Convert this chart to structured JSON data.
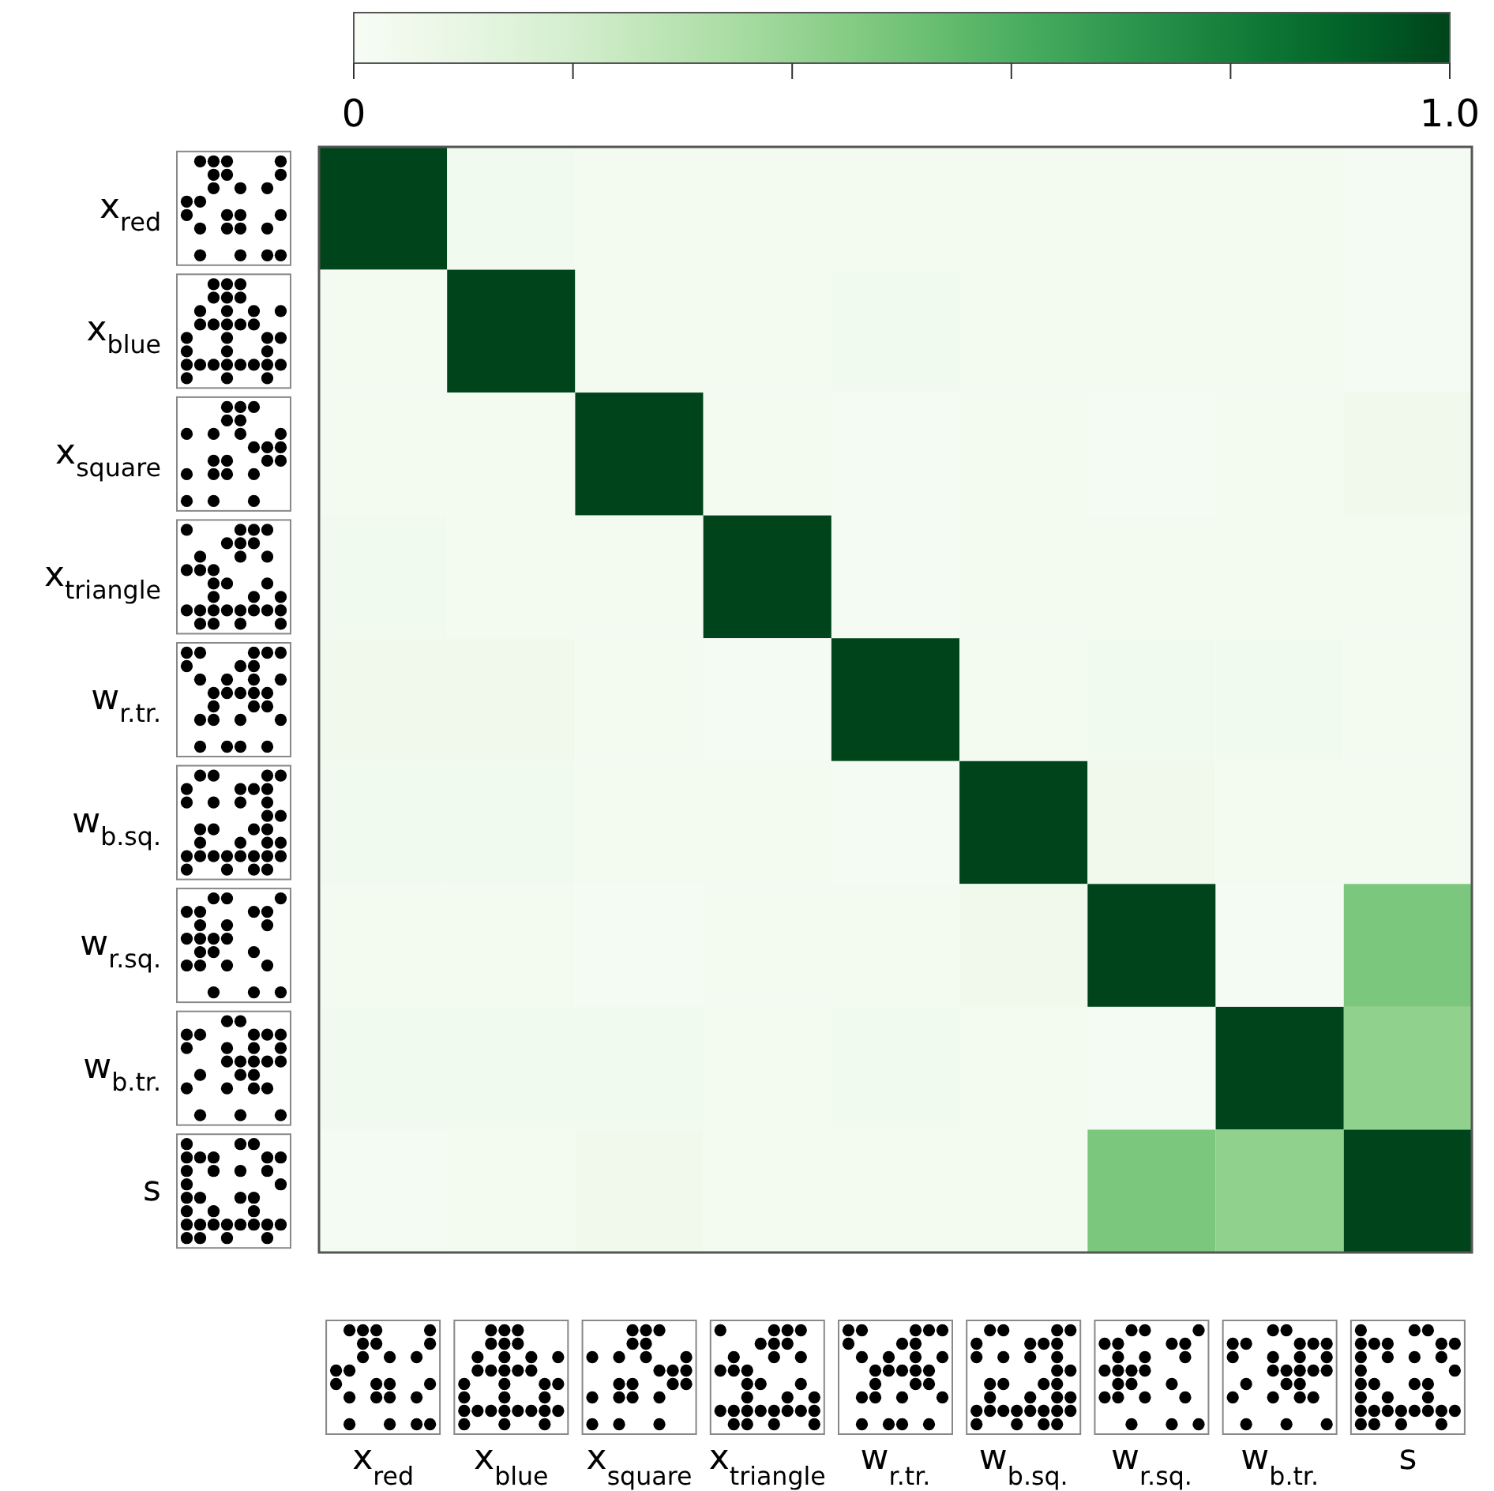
{
  "chart_data": {
    "type": "heatmap",
    "categories": [
      "x$_{red}$",
      "x$_{blue}$",
      "x$_{square}$",
      "x$_{triangle}$",
      "w$_{r.tr.}$",
      "w$_{b.sq.}$",
      "w$_{r.sq.}$",
      "w$_{b.tr.}$",
      "s"
    ],
    "y_categories": [
      "x$_{red}$",
      "x$_{blue}$",
      "x$_{square}$",
      "x$_{triangle}$",
      "w$_{r.tr.}$",
      "w$_{b.sq.}$",
      "w$_{r.sq.}$",
      "w$_{b.tr.}$",
      "s"
    ],
    "cells": [
      [
        1,
        0.04,
        0.03,
        0.03,
        0.03,
        0.03,
        0.03,
        0.03,
        0.02
      ],
      [
        0.03,
        1,
        0.03,
        0.03,
        0.04,
        0.03,
        0.03,
        0.03,
        0.02
      ],
      [
        0.03,
        0.03,
        1,
        0.03,
        0.02,
        0.03,
        0.02,
        0.03,
        0.05
      ],
      [
        0.04,
        0.03,
        0.03,
        1,
        0.02,
        0.03,
        0.03,
        0.03,
        0.03
      ],
      [
        0.05,
        0.05,
        0.03,
        0.02,
        1,
        0.03,
        0.04,
        0.04,
        0.03
      ],
      [
        0.04,
        0.04,
        0.03,
        0.03,
        0.02,
        1,
        0.05,
        0.03,
        0.03
      ],
      [
        0.03,
        0.03,
        0.02,
        0.03,
        0.03,
        0.05,
        1,
        0.02,
        0.48
      ],
      [
        0.04,
        0.04,
        0.04,
        0.03,
        0.04,
        0.03,
        0.02,
        1,
        0.42
      ],
      [
        0.02,
        0.03,
        0.05,
        0.03,
        0.03,
        0.03,
        0.48,
        0.42,
        1
      ]
    ],
    "clim": [
      0,
      1
    ],
    "cticks": [
      0,
      {
        "value": 0.2,
        "label": null
      },
      {
        "value": 0.4,
        "label": null
      },
      {
        "value": 0.6,
        "label": null
      },
      {
        "value": 0.8,
        "label": null
      },
      {
        "value": 1,
        "label": "1.0"
      }
    ]
  }
}
